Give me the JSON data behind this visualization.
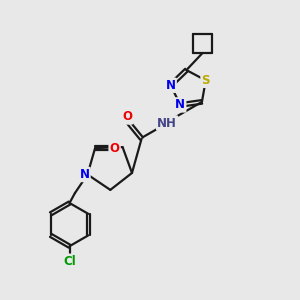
{
  "background_color": "#e8e8e8",
  "atom_colors": {
    "C": "#1a1a1a",
    "N": "#0000ee",
    "O": "#ee0000",
    "S": "#bbaa00",
    "Cl": "#009900",
    "H": "#444488"
  },
  "bond_color": "#1a1a1a",
  "bond_width": 1.6,
  "font_size": 8.5,
  "figsize": [
    3.0,
    3.0
  ],
  "dpi": 100
}
